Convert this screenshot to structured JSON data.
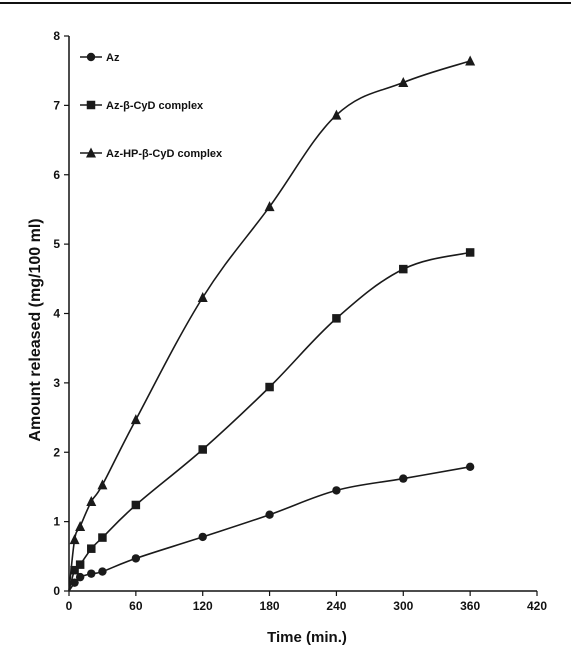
{
  "chart_data": {
    "type": "line",
    "xlabel": "Time (min.)",
    "ylabel": "Amount released (mg/100 ml)",
    "xlim": [
      0,
      420
    ],
    "ylim": [
      0,
      8
    ],
    "xticks": [
      "0",
      "60",
      "120",
      "180",
      "240",
      "300",
      "360",
      "420"
    ],
    "yticks": [
      "0",
      "1",
      "2",
      "3",
      "4",
      "5",
      "6",
      "7",
      "8"
    ],
    "grid": false,
    "legend_position": "top-left",
    "colors": {
      "line": "#1a1a1a",
      "axis": "#111111"
    },
    "series": [
      {
        "name": "Az",
        "marker": "circle",
        "x": [
          0,
          5,
          10,
          20,
          30,
          60,
          120,
          180,
          240,
          300,
          360
        ],
        "y": [
          0,
          0.12,
          0.2,
          0.25,
          0.28,
          0.47,
          0.78,
          1.1,
          1.45,
          1.62,
          1.79
        ]
      },
      {
        "name": "Az-β-CyD complex",
        "marker": "square",
        "x": [
          0,
          5,
          10,
          20,
          30,
          60,
          120,
          180,
          240,
          300,
          360
        ],
        "y": [
          0,
          0.3,
          0.38,
          0.61,
          0.77,
          1.24,
          2.04,
          2.94,
          3.93,
          4.64,
          4.88
        ]
      },
      {
        "name": "Az-HP-β-CyD complex",
        "marker": "triangle",
        "x": [
          0,
          5,
          10,
          20,
          30,
          60,
          120,
          180,
          240,
          300,
          360
        ],
        "y": [
          0,
          0.74,
          0.93,
          1.29,
          1.53,
          2.47,
          4.23,
          5.54,
          6.86,
          7.33,
          7.64
        ]
      }
    ]
  }
}
